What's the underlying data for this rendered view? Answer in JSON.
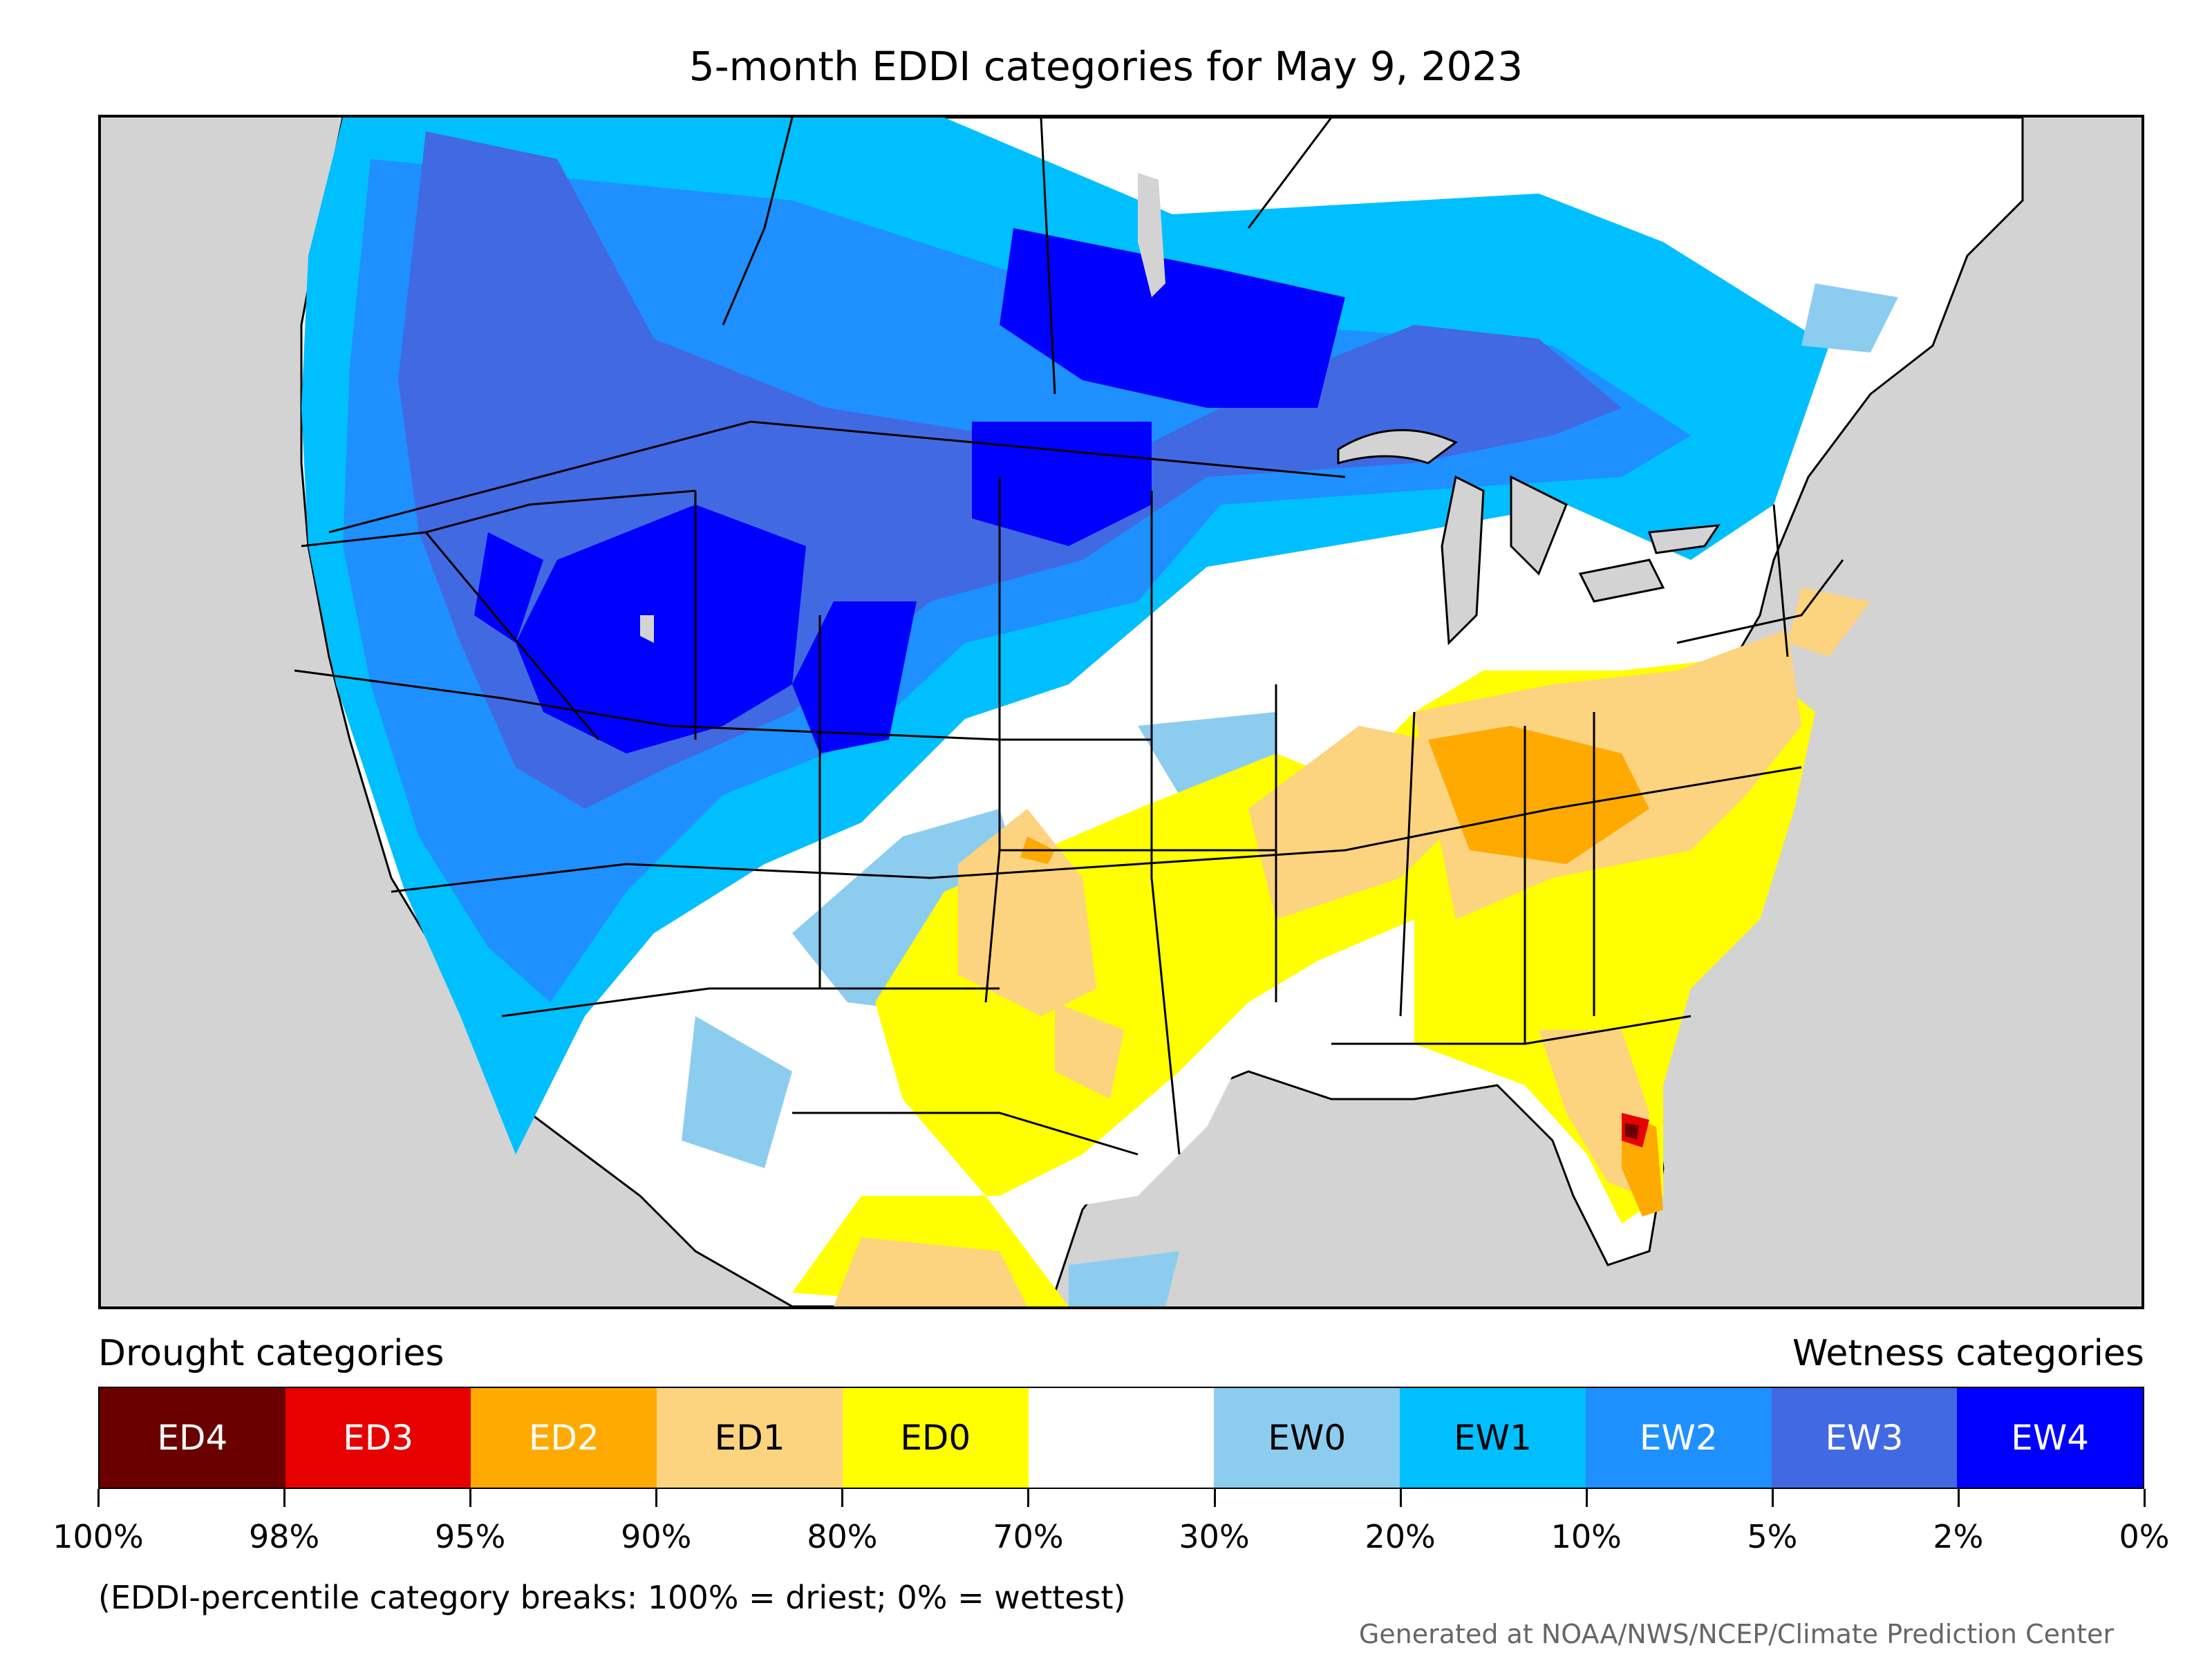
{
  "title": "5-month EDDI categories for May 9, 2023",
  "legend": {
    "drought_label": "Drought categories",
    "wetness_label": "Wetness categories",
    "categories": [
      {
        "label": "ED4",
        "color": "#6b0000",
        "text_color": "#ffffff"
      },
      {
        "label": "ED3",
        "color": "#e60000",
        "text_color": "#ffffff"
      },
      {
        "label": "ED2",
        "color": "#ffaa00",
        "text_color": "#ffffff"
      },
      {
        "label": "ED1",
        "color": "#fcd37f",
        "text_color": "#000000"
      },
      {
        "label": "ED0",
        "color": "#ffff00",
        "text_color": "#000000"
      },
      {
        "label": "",
        "color": "#ffffff",
        "text_color": "#000000"
      },
      {
        "label": "EW0",
        "color": "#8ccdef",
        "text_color": "#000000"
      },
      {
        "label": "EW1",
        "color": "#00bfff",
        "text_color": "#000000"
      },
      {
        "label": "EW2",
        "color": "#1e90ff",
        "text_color": "#ffffff"
      },
      {
        "label": "EW3",
        "color": "#4169e1",
        "text_color": "#ffffff"
      },
      {
        "label": "EW4",
        "color": "#0000ff",
        "text_color": "#ffffff"
      }
    ],
    "tick_labels": [
      "100%",
      "98%",
      "95%",
      "90%",
      "80%",
      "70%",
      "30%",
      "20%",
      "10%",
      "5%",
      "2%",
      "0%"
    ]
  },
  "note": "(EDDI-percentile category breaks: 100% = driest; 0% = wettest)",
  "credit": "Generated at NOAA/NWS/NCEP/Climate Prediction Center"
}
